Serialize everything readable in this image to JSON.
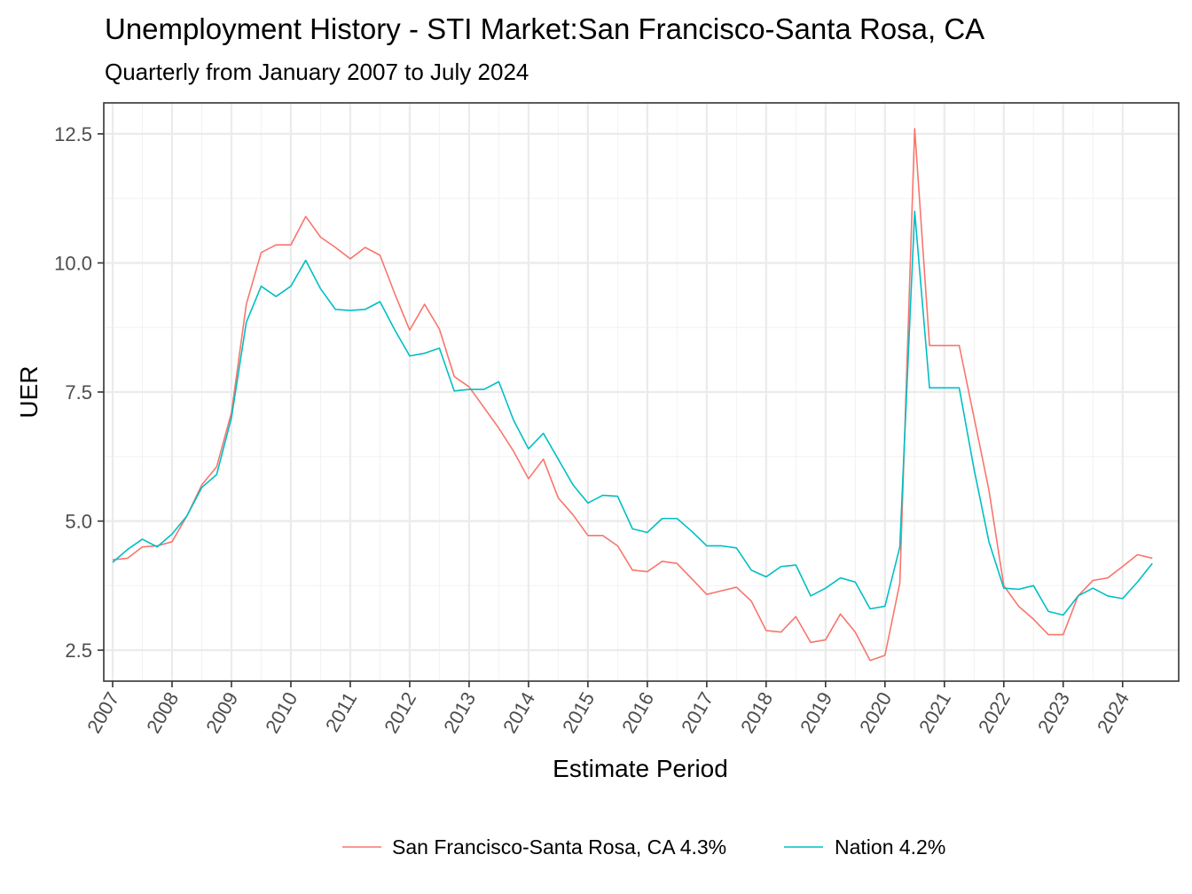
{
  "chart_data": {
    "type": "line",
    "title": "Unemployment History - STI Market:San Francisco-Santa Rosa, CA",
    "subtitle": "Quarterly from January 2007 to July 2024",
    "xlabel": "Estimate Period",
    "ylabel": "UER",
    "xlim": [
      2007,
      2024.75
    ],
    "ylim": [
      1.9,
      13.1
    ],
    "yticks": [
      "2.5",
      "5.0",
      "7.5",
      "10.0",
      "12.5"
    ],
    "ytick_values": [
      2.5,
      5.0,
      7.5,
      10.0,
      12.5
    ],
    "xticks": [
      "2007",
      "2008",
      "2009",
      "2010",
      "2011",
      "2012",
      "2013",
      "2014",
      "2015",
      "2016",
      "2017",
      "2018",
      "2019",
      "2020",
      "2021",
      "2022",
      "2023",
      "2024"
    ],
    "xtick_values": [
      2007,
      2008,
      2009,
      2010,
      2011,
      2012,
      2013,
      2014,
      2015,
      2016,
      2017,
      2018,
      2019,
      2020,
      2021,
      2022,
      2023,
      2024
    ],
    "grid": true,
    "legend_position": "bottom",
    "x": [
      2007,
      2007.25,
      2007.5,
      2007.75,
      2008,
      2008.25,
      2008.5,
      2008.75,
      2009,
      2009.25,
      2009.5,
      2009.75,
      2010,
      2010.25,
      2010.5,
      2010.75,
      2011,
      2011.25,
      2011.5,
      2011.75,
      2012,
      2012.25,
      2012.5,
      2012.75,
      2013,
      2013.25,
      2013.5,
      2013.75,
      2014,
      2014.25,
      2014.5,
      2014.75,
      2015,
      2015.25,
      2015.5,
      2015.75,
      2016,
      2016.25,
      2016.5,
      2016.75,
      2017,
      2017.25,
      2017.5,
      2017.75,
      2018,
      2018.25,
      2018.5,
      2018.75,
      2019,
      2019.25,
      2019.5,
      2019.75,
      2020,
      2020.25,
      2020.5,
      2020.75,
      2021,
      2021.25,
      2021.5,
      2021.75,
      2022,
      2022.25,
      2022.5,
      2022.75,
      2023,
      2023.25,
      2023.5,
      2023.75,
      2024,
      2024.25,
      2024.5
    ],
    "series": [
      {
        "name": "San Francisco-Santa Rosa, CA 4.3%",
        "color": "#F8766D",
        "values": [
          4.25,
          4.28,
          4.5,
          4.52,
          4.6,
          5.1,
          5.7,
          6.05,
          7.1,
          9.2,
          10.2,
          10.35,
          10.35,
          10.9,
          10.5,
          10.3,
          10.08,
          10.3,
          10.15,
          9.4,
          8.7,
          9.2,
          8.72,
          7.8,
          7.6,
          7.2,
          6.8,
          6.35,
          5.82,
          6.2,
          5.45,
          5.12,
          4.72,
          4.72,
          4.52,
          4.05,
          4.02,
          4.22,
          4.18,
          3.88,
          3.58,
          3.65,
          3.72,
          3.45,
          2.88,
          2.85,
          3.15,
          2.65,
          2.7,
          3.2,
          2.85,
          2.3,
          2.4,
          3.8,
          12.6,
          8.4,
          8.4,
          8.4,
          7.0,
          5.6,
          3.75,
          3.35,
          3.1,
          2.8,
          2.8,
          3.55,
          3.85,
          3.9,
          4.12,
          4.35,
          4.28
        ]
      },
      {
        "name": "Nation 4.2%",
        "color": "#00BFC4",
        "values": [
          4.2,
          4.45,
          4.65,
          4.5,
          4.75,
          5.1,
          5.65,
          5.9,
          7.0,
          8.85,
          9.55,
          9.35,
          9.55,
          10.05,
          9.5,
          9.1,
          9.08,
          9.1,
          9.25,
          8.7,
          8.2,
          8.25,
          8.35,
          7.52,
          7.55,
          7.55,
          7.7,
          6.95,
          6.4,
          6.7,
          6.2,
          5.7,
          5.35,
          5.5,
          5.48,
          4.85,
          4.78,
          5.05,
          5.05,
          4.8,
          4.52,
          4.52,
          4.48,
          4.05,
          3.92,
          4.12,
          4.15,
          3.55,
          3.7,
          3.9,
          3.82,
          3.3,
          3.35,
          4.5,
          11.0,
          7.58,
          7.58,
          7.58,
          6.0,
          4.6,
          3.7,
          3.68,
          3.75,
          3.25,
          3.18,
          3.55,
          3.7,
          3.55,
          3.5,
          3.82,
          4.18
        ]
      }
    ]
  }
}
